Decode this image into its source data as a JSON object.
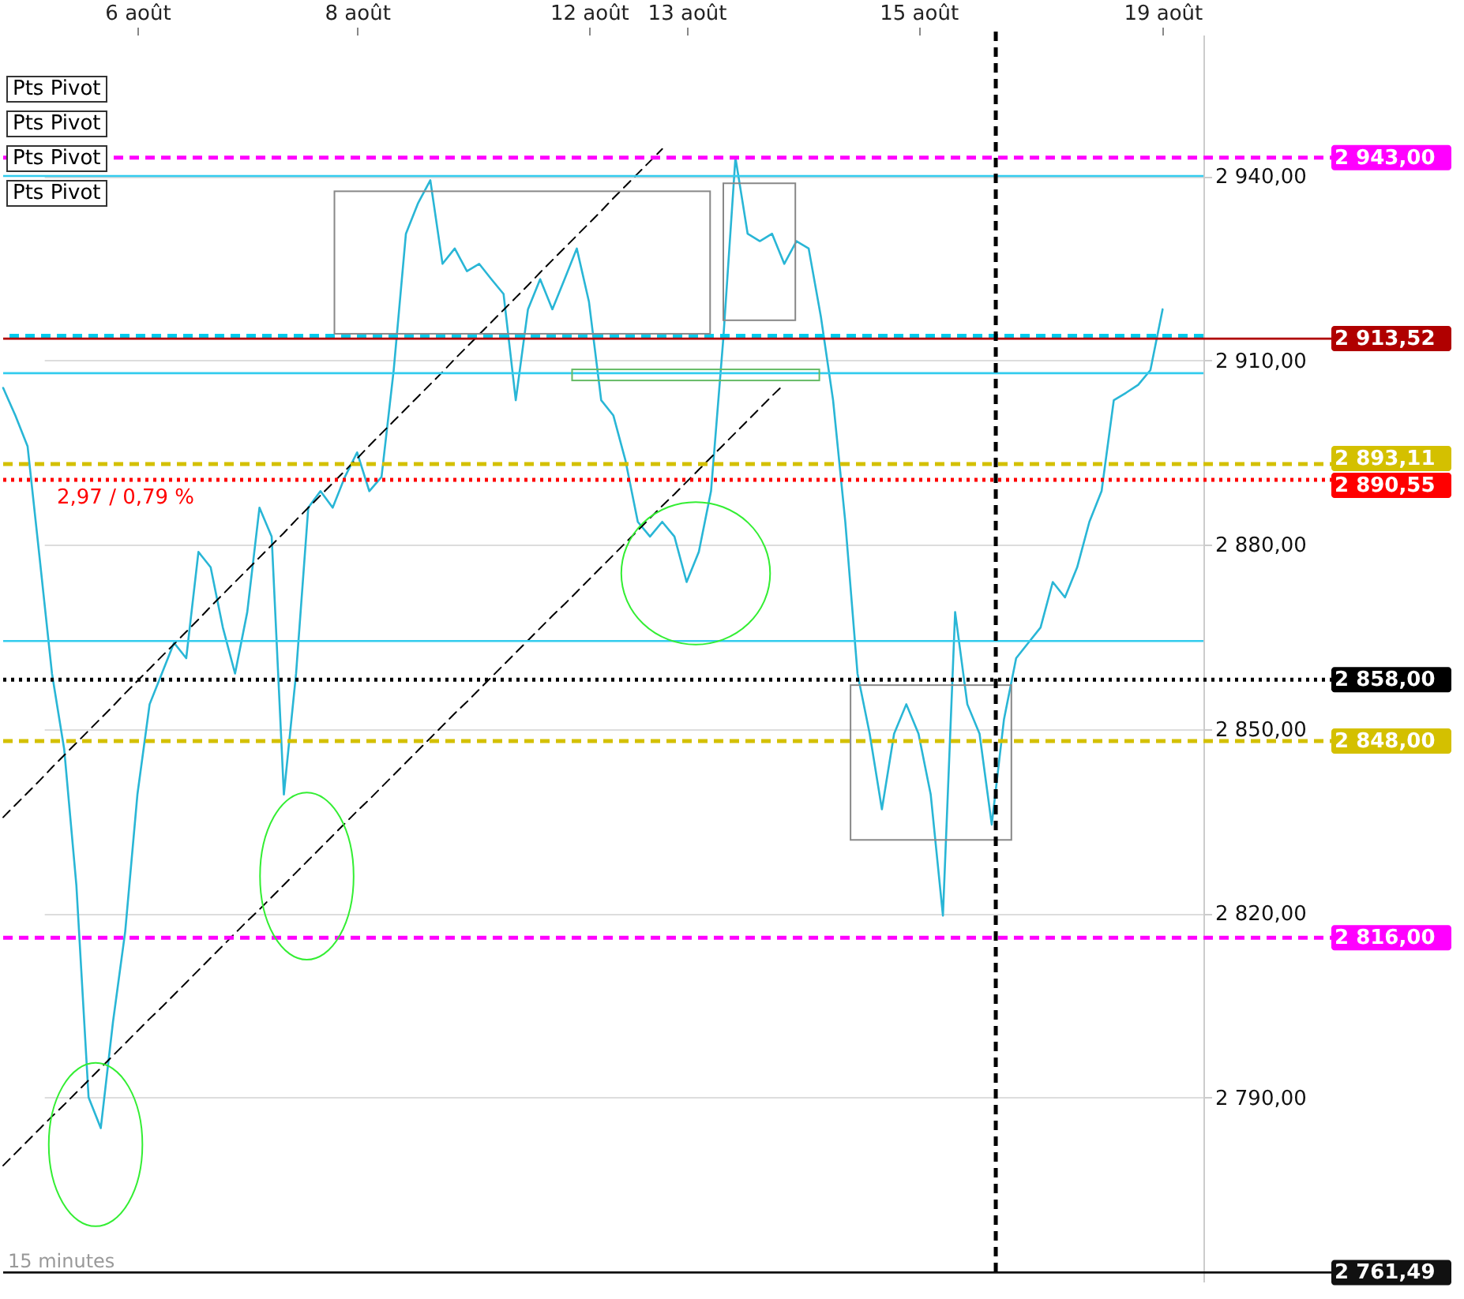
{
  "chart_data": {
    "type": "line",
    "ylim": [
      2760,
      2963
    ],
    "categories": [
      null,
      null,
      null,
      null,
      null,
      null,
      null,
      null,
      null,
      null,
      null,
      "6 août",
      null,
      null,
      null,
      null,
      null,
      null,
      null,
      null,
      null,
      null,
      null,
      null,
      null,
      null,
      null,
      null,
      null,
      "8 août",
      null,
      null,
      null,
      null,
      null,
      null,
      null,
      null,
      null,
      null,
      null,
      null,
      null,
      null,
      null,
      null,
      null,
      null,
      "12 août",
      null,
      null,
      null,
      null,
      null,
      null,
      null,
      "13 août",
      null,
      null,
      null,
      null,
      null,
      null,
      null,
      null,
      null,
      null,
      null,
      null,
      null,
      null,
      null,
      null,
      null,
      null,
      "15 août",
      null,
      null,
      null,
      null,
      null,
      null,
      null,
      null,
      null,
      null,
      null,
      null,
      null,
      null,
      null,
      null,
      null,
      null,
      null,
      "19 août"
    ],
    "yticks": [
      {
        "value": 2790,
        "label": "2 790,00"
      },
      {
        "value": 2820,
        "label": "2 820,00"
      },
      {
        "value": 2850,
        "label": "2 850,00"
      },
      {
        "value": 2880,
        "label": "2 880,00"
      },
      {
        "value": 2910,
        "label": "2 910,00"
      },
      {
        "value": 2940,
        "label": "2 940,00"
      }
    ],
    "grid": "y",
    "legend": false,
    "marker": "none",
    "line_style": "solid",
    "series": [
      {
        "color": "#29b6d6",
        "values": [
          2905.5,
          2901,
          2896,
          2877.6,
          2859,
          2846.7,
          2824.5,
          2790,
          2785,
          2802.3,
          2817,
          2839.3,
          2854,
          2859,
          2864,
          2861.5,
          2878.8,
          2876.3,
          2866.5,
          2859,
          2869,
          2886,
          2881.3,
          2839.3,
          2859,
          2886,
          2888.7,
          2886,
          2891,
          2895,
          2888.7,
          2891,
          2908.4,
          2930.6,
          2935.6,
          2939.3,
          2925.7,
          2928.2,
          2924.5,
          2925.7,
          2923.2,
          2920.8,
          2903.5,
          2918.3,
          2923.2,
          2918.3,
          2923.2,
          2928.2,
          2919.5,
          2903.5,
          2901,
          2893.6,
          2883.7,
          2881.3,
          2883.7,
          2881.3,
          2873.9,
          2878.8,
          2888.7,
          2913.4,
          2943,
          2930.6,
          2929.4,
          2930.6,
          2925.7,
          2929.4,
          2928.2,
          2917.1,
          2903.5,
          2883.7,
          2859,
          2849.2,
          2836.9,
          2849.2,
          2854,
          2849.2,
          2839.3,
          2819.6,
          2869,
          2854,
          2849.2,
          2834.4,
          2851.5,
          2861.5,
          2864,
          2866.5,
          2873.9,
          2871.4,
          2876.3,
          2883.7,
          2888.7,
          2903.5,
          2904.7,
          2906,
          2908.4,
          2918.3
        ]
      },
      {
        "type": "line",
        "color": "#000000",
        "line_style": "dashed",
        "values": [
          2835.6,
          2837.6,
          2839.6,
          2841.6,
          2843.7,
          2845.7,
          2847.7,
          2849.7,
          2851.7,
          2853.7,
          2855.8,
          2857.8,
          2859.8,
          2861.8,
          2863.8,
          2865.8,
          2867.8,
          2869.9,
          2871.9,
          2873.9,
          2875.9,
          2877.9,
          2879.9,
          2881.9,
          2884,
          2886,
          2888,
          2890,
          2892,
          2894,
          2896.1,
          2898.1,
          2900.1,
          2902.1,
          2904.1,
          2906.1,
          2908.1,
          2910.2,
          2912.2,
          2914.2,
          2916.2,
          2918.2,
          2920.2,
          2922.2,
          2924.3,
          2926.3,
          2928.3,
          2930.3,
          2932.3,
          2934.3,
          2936.4,
          2938.4,
          2940.4,
          2942.4,
          2944.4,
          null,
          null,
          null,
          null,
          null,
          null,
          null,
          null,
          null,
          null,
          null,
          null,
          null,
          null,
          null,
          null,
          null,
          null,
          null,
          null,
          null,
          null,
          null,
          null,
          null,
          null,
          null,
          null,
          null,
          null,
          null,
          null,
          null,
          null,
          null,
          null,
          null,
          null,
          null,
          null,
          null
        ]
      },
      {
        "type": "line",
        "color": "#000000",
        "line_style": "dashed",
        "values": [
          2778.9,
          2780.9,
          2782.9,
          2784.9,
          2786.9,
          2788.8,
          2790.8,
          2792.8,
          2794.8,
          2796.8,
          2798.8,
          2800.8,
          2802.8,
          2804.7,
          2806.7,
          2808.7,
          2810.7,
          2812.7,
          2814.7,
          2816.7,
          2818.7,
          2820.6,
          2822.6,
          2824.6,
          2826.6,
          2828.6,
          2830.6,
          2832.6,
          2834.6,
          2836.6,
          2838.5,
          2840.5,
          2842.5,
          2844.5,
          2846.5,
          2848.5,
          2850.5,
          2852.5,
          2854.4,
          2856.4,
          2858.4,
          2860.4,
          2862.4,
          2864.4,
          2866.4,
          2868.4,
          2870.3,
          2872.3,
          2874.3,
          2876.3,
          2878.3,
          2880.3,
          2882.3,
          2884.3,
          2886.3,
          2888.2,
          2890.2,
          2892.2,
          2894.2,
          2896.2,
          2898.2,
          2900.2,
          2902.2,
          2904.2,
          2906.1,
          null,
          null,
          null,
          null,
          null,
          null,
          null,
          null,
          null,
          null,
          null,
          null,
          null,
          null,
          null,
          null,
          null,
          null,
          null,
          null,
          null,
          null,
          null,
          null,
          null,
          null,
          null,
          null,
          null,
          null,
          null
        ]
      }
    ],
    "ref_lines": [
      {
        "axis": "y",
        "value": 2943,
        "label": "2 943,00",
        "color": "#ff00ff",
        "line_style": "dashed"
      },
      {
        "axis": "y",
        "value": 2940,
        "color": "#33ccee",
        "line_style": "solid"
      },
      {
        "axis": "y",
        "value": 2914,
        "color": "#00ccee",
        "line_style": "dashed"
      },
      {
        "axis": "y",
        "value": 2913.52,
        "label": "2 913,52",
        "color": "#b00000",
        "line_style": "solid"
      },
      {
        "axis": "y",
        "value": 2907.9,
        "color": "#33ccee",
        "line_style": "solid"
      },
      {
        "axis": "y",
        "value": 2893.11,
        "label": "2 893,11",
        "color": "#d4c000",
        "line_style": "dashed"
      },
      {
        "axis": "y",
        "value": 2890.55,
        "label": "2 890,55",
        "color": "#ff0000",
        "line_style": "dotted"
      },
      {
        "axis": "y",
        "value": 2864.3,
        "color": "#33ccee",
        "line_style": "solid"
      },
      {
        "axis": "y",
        "value": 2858,
        "label": "2 858,00",
        "color": "#000000",
        "line_style": "dotted"
      },
      {
        "axis": "y",
        "value": 2848,
        "label": "2 848,00",
        "color": "#d4c000",
        "line_style": "dashed"
      },
      {
        "axis": "y",
        "value": 2816,
        "label": "2 816,00",
        "color": "#ff00ff",
        "line_style": "dashed"
      },
      {
        "axis": "y",
        "value": 2761.49,
        "label": "2 761,49",
        "color": "#111111",
        "line_style": "solid"
      }
    ],
    "annotations": [
      {
        "text": "2,97 / 0,79 %",
        "y": 2890.55
      },
      "Pts Pivot",
      "Pts Pivot",
      "Pts Pivot",
      "Pts Pivot",
      "15 minutes"
    ]
  }
}
